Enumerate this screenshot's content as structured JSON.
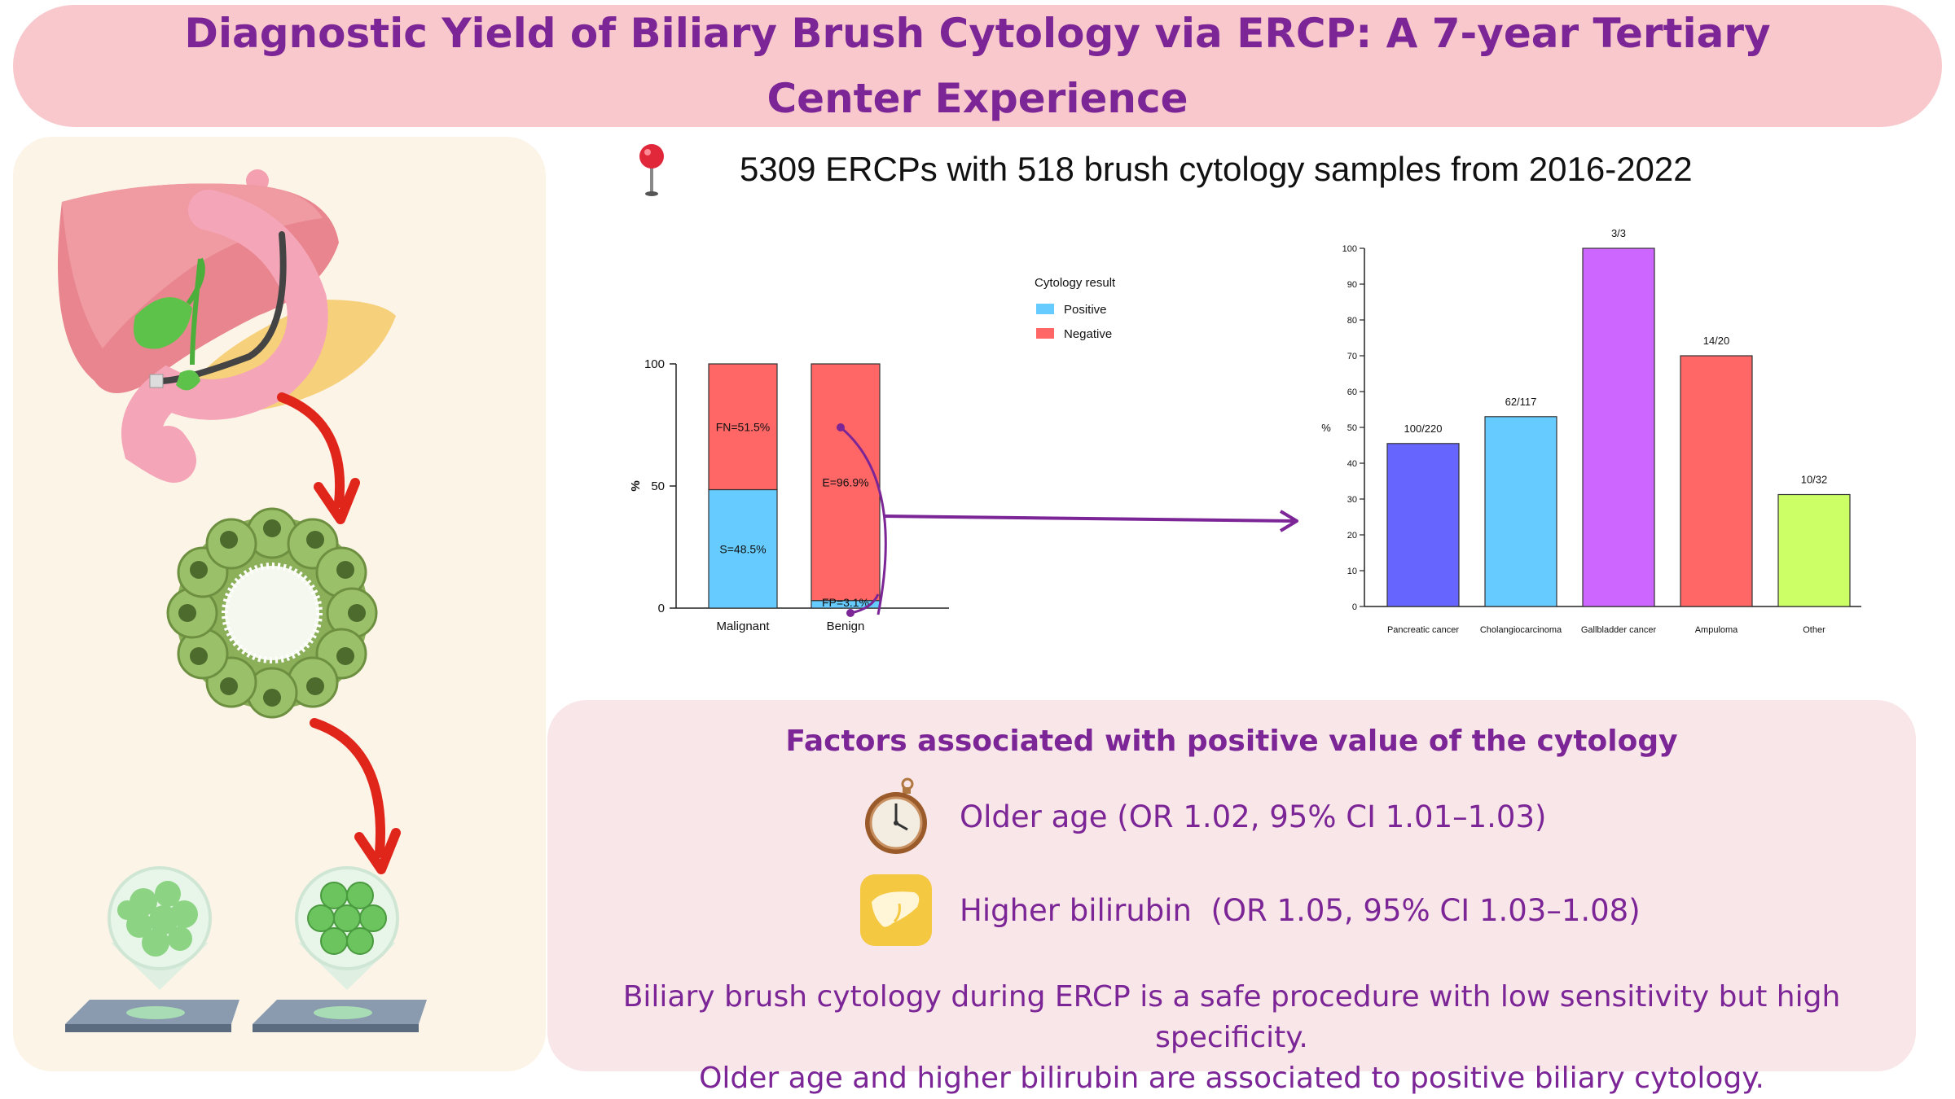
{
  "title": {
    "line1": "Diagnostic Yield of Biliary Brush Cytology via ERCP: A 7-year Tertiary",
    "line2": "Center Experience"
  },
  "summary": {
    "text": "5309 ERCPs with 518 brush cytology samples from 2016-2022",
    "icon": "map-pin-icon"
  },
  "colors": {
    "title_text": "#7b2596",
    "title_bg": "#f8c8cc",
    "positive": "#66ccff",
    "negative": "#ff6666",
    "connector": "#7b2596"
  },
  "chart_data": [
    {
      "type": "bar",
      "stacked": true,
      "categories": [
        "Malignant",
        "Benign"
      ],
      "series": [
        {
          "name": "Positive",
          "values": [
            48.5,
            3.1
          ],
          "labels": [
            "S=48.5%",
            "FP=3.1%"
          ],
          "color": "#66ccff"
        },
        {
          "name": "Negative",
          "values": [
            51.5,
            96.9
          ],
          "labels": [
            "FN=51.5%",
            "E=96.9%"
          ],
          "color": "#ff6666"
        }
      ],
      "ylabel": "%",
      "ylim": [
        0,
        100
      ],
      "yticks": [
        0,
        50,
        100
      ],
      "legend": {
        "title": "Cytology result",
        "placement": "right"
      }
    },
    {
      "type": "bar",
      "categories": [
        "Pancreatic cancer",
        "Cholangiocarcinoma",
        "Gallbladder cancer",
        "Ampuloma",
        "Other"
      ],
      "values": [
        45.5,
        53,
        100,
        70,
        31.25
      ],
      "data_labels": [
        "100/220",
        "62/117",
        "3/3",
        "14/20",
        "10/32"
      ],
      "colors": [
        "#6666ff",
        "#66ccff",
        "#cc66ff",
        "#ff6666",
        "#ccff66"
      ],
      "ylabel": "%",
      "ylim": [
        0,
        100
      ],
      "yticks": [
        0,
        10,
        20,
        30,
        40,
        50,
        60,
        70,
        80,
        90,
        100
      ]
    }
  ],
  "factors": {
    "title": "Factors associated with positive value of the cytology",
    "items": [
      {
        "icon": "pocket-watch-icon",
        "text": "Older age (OR 1.02, 95% CI 1.01–1.03)"
      },
      {
        "icon": "liver-icon",
        "text": "Higher bilirubin  (OR 1.05, 95% CI 1.03–1.08)"
      }
    ]
  },
  "conclusion": {
    "line1": "Biliary brush cytology during ERCP is a safe procedure with low sensitivity but high specificity.",
    "line2": "Older age and higher bilirubin are associated to positive biliary cytology."
  },
  "illustrations": {
    "anatomy": "liver-pancreas-endoscope-illustration",
    "cell_ring": "epithelial-cell-ring-illustration",
    "slides": [
      "atypical-cells-slide-illustration",
      "normal-cells-slide-illustration"
    ]
  }
}
